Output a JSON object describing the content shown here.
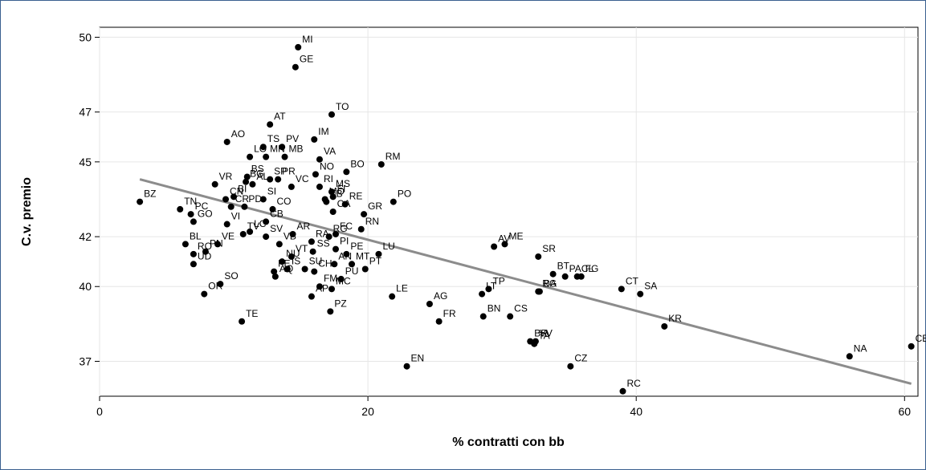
{
  "chart_data": {
    "type": "scatter",
    "xlabel": "% contratti con bb",
    "ylabel": "C.v. premio",
    "xlim": [
      0,
      61
    ],
    "ylim": [
      35.6,
      50.4
    ],
    "xticks": [
      0,
      20,
      40,
      60
    ],
    "yticks": [
      37,
      40,
      42,
      45,
      47,
      50
    ],
    "xtick_labels": [
      "0",
      "20",
      "40",
      "60"
    ],
    "ytick_labels": [
      "37",
      "40",
      "42",
      "45",
      "47",
      "50"
    ],
    "grid": true,
    "colors": {
      "points": "#000000",
      "fit_line": "#8c8c8c",
      "grid": "#e6e6e6",
      "frame": "#3a5f8f"
    },
    "fit_line": {
      "x": [
        3.0,
        60.5
      ],
      "y": [
        44.3,
        36.1
      ]
    },
    "points": [
      {
        "label": "MI",
        "x": 14.8,
        "y": 49.6
      },
      {
        "label": "GE",
        "x": 14.6,
        "y": 48.8
      },
      {
        "label": "TO",
        "x": 17.3,
        "y": 46.9
      },
      {
        "label": "AT",
        "x": 12.7,
        "y": 46.5
      },
      {
        "label": "AO",
        "x": 9.5,
        "y": 45.8
      },
      {
        "label": "IM",
        "x": 16.0,
        "y": 45.9
      },
      {
        "label": "TS",
        "x": 12.2,
        "y": 45.6
      },
      {
        "label": "PV",
        "x": 13.6,
        "y": 45.6
      },
      {
        "label": "LO",
        "x": 11.2,
        "y": 45.2
      },
      {
        "label": "MN",
        "x": 12.4,
        "y": 45.2
      },
      {
        "label": "MB",
        "x": 13.8,
        "y": 45.2
      },
      {
        "label": "VA",
        "x": 16.4,
        "y": 45.1
      },
      {
        "label": "RM",
        "x": 21.0,
        "y": 44.9
      },
      {
        "label": "BO",
        "x": 18.4,
        "y": 44.6
      },
      {
        "label": "BS",
        "x": 11.0,
        "y": 44.4
      },
      {
        "label": "SP",
        "x": 12.7,
        "y": 44.3
      },
      {
        "label": "NO",
        "x": 16.1,
        "y": 44.5
      },
      {
        "label": "PR",
        "x": 13.3,
        "y": 44.3
      },
      {
        "label": "VR",
        "x": 8.6,
        "y": 44.1
      },
      {
        "label": "BG",
        "x": 10.9,
        "y": 44.2
      },
      {
        "label": "AL",
        "x": 11.4,
        "y": 44.1
      },
      {
        "label": "VC",
        "x": 14.3,
        "y": 44.0
      },
      {
        "label": "RI",
        "x": 16.4,
        "y": 44.0
      },
      {
        "label": "MS",
        "x": 17.3,
        "y": 43.8
      },
      {
        "label": "CN",
        "x": 9.4,
        "y": 43.5
      },
      {
        "label": "BI",
        "x": 10.0,
        "y": 43.6
      },
      {
        "label": "SI",
        "x": 12.2,
        "y": 43.5
      },
      {
        "label": "MO",
        "x": 16.8,
        "y": 43.5
      },
      {
        "label": "FI",
        "x": 17.4,
        "y": 43.6
      },
      {
        "label": "PO",
        "x": 21.9,
        "y": 43.4
      },
      {
        "label": "BZ",
        "x": 3.0,
        "y": 43.4
      },
      {
        "label": "TN",
        "x": 6.0,
        "y": 43.1
      },
      {
        "label": "PC",
        "x": 6.8,
        "y": 42.9
      },
      {
        "label": "CR",
        "x": 9.8,
        "y": 43.2
      },
      {
        "label": "PD",
        "x": 10.8,
        "y": 43.2
      },
      {
        "label": "CO",
        "x": 12.9,
        "y": 43.1
      },
      {
        "label": "TB",
        "x": 16.9,
        "y": 43.4
      },
      {
        "label": "CA",
        "x": 17.4,
        "y": 43.0
      },
      {
        "label": "RE",
        "x": 18.3,
        "y": 43.3
      },
      {
        "label": "GR",
        "x": 19.7,
        "y": 42.9
      },
      {
        "label": "GO",
        "x": 7.0,
        "y": 42.6
      },
      {
        "label": "VI",
        "x": 9.5,
        "y": 42.5
      },
      {
        "label": "CB",
        "x": 12.4,
        "y": 42.6
      },
      {
        "label": "AR",
        "x": 14.4,
        "y": 42.1
      },
      {
        "label": "FC",
        "x": 17.6,
        "y": 42.1
      },
      {
        "label": "RN",
        "x": 19.5,
        "y": 42.3
      },
      {
        "label": "TV",
        "x": 10.7,
        "y": 42.1
      },
      {
        "label": "LC",
        "x": 11.2,
        "y": 42.2
      },
      {
        "label": "SV",
        "x": 12.4,
        "y": 42.0
      },
      {
        "label": "RG",
        "x": 17.1,
        "y": 42.0
      },
      {
        "label": "BL",
        "x": 6.4,
        "y": 41.7
      },
      {
        "label": "VE",
        "x": 8.8,
        "y": 41.7
      },
      {
        "label": "VB",
        "x": 13.4,
        "y": 41.7
      },
      {
        "label": "RA",
        "x": 15.8,
        "y": 41.8
      },
      {
        "label": "PI",
        "x": 17.6,
        "y": 41.5
      },
      {
        "label": "SS",
        "x": 15.9,
        "y": 41.4
      },
      {
        "label": "PE",
        "x": 18.4,
        "y": 41.3
      },
      {
        "label": "LU",
        "x": 20.8,
        "y": 41.3
      },
      {
        "label": "RO",
        "x": 7.0,
        "y": 41.3
      },
      {
        "label": "PN",
        "x": 7.9,
        "y": 41.4
      },
      {
        "label": "NU",
        "x": 13.6,
        "y": 41.0
      },
      {
        "label": "VT",
        "x": 14.3,
        "y": 41.2
      },
      {
        "label": "AN",
        "x": 17.5,
        "y": 40.9
      },
      {
        "label": "MT",
        "x": 18.8,
        "y": 40.9
      },
      {
        "label": "UD",
        "x": 7.0,
        "y": 40.9
      },
      {
        "label": "FE",
        "x": 13.0,
        "y": 40.6
      },
      {
        "label": "IS",
        "x": 14.0,
        "y": 40.7
      },
      {
        "label": "SU",
        "x": 15.3,
        "y": 40.7
      },
      {
        "label": "CH",
        "x": 16.0,
        "y": 40.6
      },
      {
        "label": "PT",
        "x": 19.8,
        "y": 40.7
      },
      {
        "label": "SO",
        "x": 9.0,
        "y": 40.1
      },
      {
        "label": "AQ",
        "x": 13.1,
        "y": 40.4
      },
      {
        "label": "PU",
        "x": 18.0,
        "y": 40.3
      },
      {
        "label": "FM",
        "x": 16.4,
        "y": 40.0
      },
      {
        "label": "OR",
        "x": 7.8,
        "y": 39.7
      },
      {
        "label": "MC",
        "x": 17.3,
        "y": 39.9
      },
      {
        "label": "AP",
        "x": 15.8,
        "y": 39.6
      },
      {
        "label": "PZ",
        "x": 17.2,
        "y": 39.0
      },
      {
        "label": "TE",
        "x": 10.6,
        "y": 38.6
      },
      {
        "label": "LE",
        "x": 21.8,
        "y": 39.6
      },
      {
        "label": "EN",
        "x": 22.9,
        "y": 36.8
      },
      {
        "label": "AG",
        "x": 24.6,
        "y": 39.3
      },
      {
        "label": "FR",
        "x": 25.3,
        "y": 38.6
      },
      {
        "label": "LT",
        "x": 28.5,
        "y": 39.7
      },
      {
        "label": "BN",
        "x": 28.6,
        "y": 38.8
      },
      {
        "label": "TP",
        "x": 29.0,
        "y": 39.9
      },
      {
        "label": "AV",
        "x": 29.4,
        "y": 41.6
      },
      {
        "label": "ME",
        "x": 30.2,
        "y": 41.7
      },
      {
        "label": "CS",
        "x": 30.6,
        "y": 38.8
      },
      {
        "label": "BR",
        "x": 32.1,
        "y": 37.8
      },
      {
        "label": "TA",
        "x": 32.4,
        "y": 37.7
      },
      {
        "label": "VV",
        "x": 32.5,
        "y": 37.8
      },
      {
        "label": "SR",
        "x": 32.7,
        "y": 41.2
      },
      {
        "label": "BG2",
        "x": 32.7,
        "y": 39.8
      },
      {
        "label": "BA",
        "x": 32.8,
        "y": 39.8
      },
      {
        "label": "BT",
        "x": 33.8,
        "y": 40.5
      },
      {
        "label": "PA",
        "x": 34.7,
        "y": 40.4
      },
      {
        "label": "CL",
        "x": 35.6,
        "y": 40.4
      },
      {
        "label": "FG",
        "x": 35.9,
        "y": 40.4
      },
      {
        "label": "CZ",
        "x": 35.1,
        "y": 36.8
      },
      {
        "label": "CT",
        "x": 38.9,
        "y": 39.9
      },
      {
        "label": "SA",
        "x": 40.3,
        "y": 39.7
      },
      {
        "label": "RC",
        "x": 39.0,
        "y": 35.8
      },
      {
        "label": "KR",
        "x": 42.1,
        "y": 38.4
      },
      {
        "label": "NA",
        "x": 55.9,
        "y": 37.2
      },
      {
        "label": "CE",
        "x": 60.5,
        "y": 37.6
      }
    ]
  }
}
